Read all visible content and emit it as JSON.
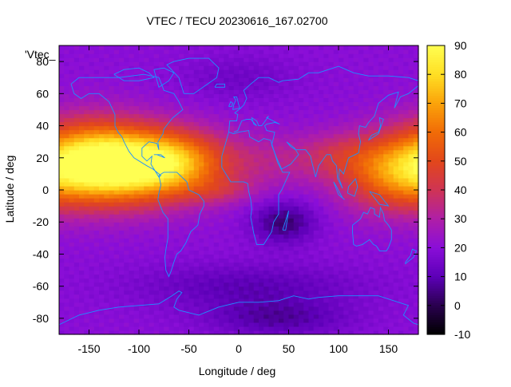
{
  "chart_data": {
    "type": "heatmap",
    "title": "VTEC / TECU 20230616_167.02700",
    "xlabel": "Longitude / deg",
    "ylabel": "Latitude / deg",
    "xlim": [
      -180,
      180
    ],
    "ylim": [
      -90,
      90
    ],
    "x_ticks": [
      -150,
      -100,
      -50,
      0,
      50,
      100,
      150
    ],
    "y_ticks": [
      -80,
      -60,
      -40,
      -20,
      0,
      20,
      40,
      60,
      80
    ],
    "colorbar": {
      "range": [
        -10,
        90
      ],
      "ticks": [
        -10,
        0,
        10,
        20,
        30,
        40,
        50,
        60,
        70,
        80,
        90
      ],
      "palette": [
        "#000000",
        "#2a004f",
        "#5d00b8",
        "#8a0ed8",
        "#b01fa6",
        "#cf3454",
        "#e2471b",
        "#f16c07",
        "#fba30a",
        "#ffdf24",
        "#ffff52"
      ]
    },
    "legend_label": "'Vtec_",
    "legend_placement": "top-left inside plot",
    "grid": false,
    "coastline_color": "#1e90ff",
    "grid_resolution_deg": [
      5,
      2.5
    ],
    "features": {
      "background_vtec": 20,
      "anomalies": [
        {
          "lon": -115,
          "lat": 15,
          "peak": 60,
          "sx": 55,
          "sy": 16
        },
        {
          "lon": -150,
          "lat": 20,
          "peak": 30,
          "sx": 40,
          "sy": 18
        },
        {
          "lon": -65,
          "lat": 18,
          "peak": 26,
          "sx": 35,
          "sy": 13
        },
        {
          "lon": 150,
          "lat": 10,
          "peak": 30,
          "sx": 35,
          "sy": 16
        },
        {
          "lon": 100,
          "lat": 22,
          "peak": 12,
          "sx": 30,
          "sy": 10
        },
        {
          "lon": 30,
          "lat": 18,
          "peak": 10,
          "sx": 45,
          "sy": 12
        },
        {
          "lon": -20,
          "lat": 0,
          "peak": 10,
          "sx": 25,
          "sy": 6
        },
        {
          "lon": 45,
          "lat": -20,
          "peak": -17,
          "sx": 22,
          "sy": 9
        },
        {
          "lon": 10,
          "lat": -60,
          "peak": -10,
          "sx": 80,
          "sy": 10
        },
        {
          "lon": 40,
          "lat": -80,
          "peak": -12,
          "sx": 50,
          "sy": 8
        },
        {
          "lon": 0,
          "lat": 70,
          "peak": -6,
          "sx": 40,
          "sy": 10
        }
      ]
    }
  }
}
